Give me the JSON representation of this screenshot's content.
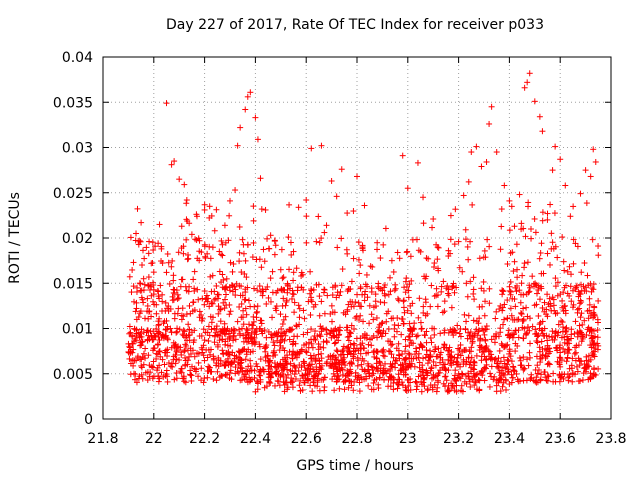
{
  "chart_data": {
    "type": "scatter",
    "title": "Day 227 of 2017, Rate Of TEC Index for receiver p033",
    "xlabel": "GPS time / hours",
    "ylabel": "ROTI / TECUs",
    "xlim": [
      21.8,
      23.8
    ],
    "ylim": [
      0,
      0.04
    ],
    "xticks": [
      "21.8",
      "22",
      "22.2",
      "22.4",
      "22.6",
      "22.8",
      "23",
      "23.2",
      "23.4",
      "23.6",
      "23.8"
    ],
    "yticks": [
      "0",
      "0.005",
      "0.01",
      "0.015",
      "0.02",
      "0.025",
      "0.03",
      "0.035",
      "0.04"
    ],
    "grid": true,
    "marker": "+",
    "marker_color": "#ff0000",
    "x_range_of_data": [
      21.9,
      23.75
    ],
    "series": [
      {
        "name": "ROTI",
        "points": [
          [
            21.92,
            0.0173
          ],
          [
            21.93,
            0.0205
          ],
          [
            21.95,
            0.0217
          ],
          [
            21.96,
            0.0155
          ],
          [
            21.98,
            0.0183
          ],
          [
            21.99,
            0.0172
          ],
          [
            22.0,
            0.0138
          ],
          [
            22.03,
            0.0188
          ],
          [
            22.05,
            0.0162
          ],
          [
            22.05,
            0.0349
          ],
          [
            22.07,
            0.0281
          ],
          [
            22.08,
            0.0285
          ],
          [
            22.1,
            0.0265
          ],
          [
            22.11,
            0.0213
          ],
          [
            22.12,
            0.0259
          ],
          [
            22.13,
            0.0242
          ],
          [
            22.15,
            0.0204
          ],
          [
            22.17,
            0.0224
          ],
          [
            22.18,
            0.0197
          ],
          [
            22.2,
            0.0231
          ],
          [
            22.22,
            0.0235
          ],
          [
            22.24,
            0.0208
          ],
          [
            22.26,
            0.0163
          ],
          [
            22.28,
            0.0214
          ],
          [
            22.3,
            0.0241
          ],
          [
            22.32,
            0.0253
          ],
          [
            22.33,
            0.0302
          ],
          [
            22.34,
            0.0322
          ],
          [
            22.36,
            0.0342
          ],
          [
            22.37,
            0.0356
          ],
          [
            22.38,
            0.0361
          ],
          [
            22.4,
            0.0333
          ],
          [
            22.41,
            0.0309
          ],
          [
            22.42,
            0.0266
          ],
          [
            22.44,
            0.0231
          ],
          [
            22.46,
            0.0203
          ],
          [
            22.48,
            0.0192
          ],
          [
            22.5,
            0.0165
          ],
          [
            22.53,
            0.0201
          ],
          [
            22.55,
            0.0185
          ],
          [
            22.58,
            0.0158
          ],
          [
            22.6,
            0.0242
          ],
          [
            22.62,
            0.0299
          ],
          [
            22.64,
            0.0196
          ],
          [
            22.66,
            0.0302
          ],
          [
            22.68,
            0.0214
          ],
          [
            22.7,
            0.0263
          ],
          [
            22.72,
            0.0246
          ],
          [
            22.74,
            0.0276
          ],
          [
            22.76,
            0.0187
          ],
          [
            22.78,
            0.0152
          ],
          [
            22.8,
            0.0268
          ],
          [
            22.83,
            0.0131
          ],
          [
            22.86,
            0.0168
          ],
          [
            22.9,
            0.0142
          ],
          [
            22.93,
            0.0156
          ],
          [
            22.96,
            0.0184
          ],
          [
            22.98,
            0.0291
          ],
          [
            23.0,
            0.0255
          ],
          [
            23.02,
            0.0198
          ],
          [
            23.04,
            0.0283
          ],
          [
            23.06,
            0.0245
          ],
          [
            23.08,
            0.0177
          ],
          [
            23.1,
            0.0221
          ],
          [
            23.12,
            0.0164
          ],
          [
            23.14,
            0.0152
          ],
          [
            23.16,
            0.0186
          ],
          [
            23.18,
            0.0147
          ],
          [
            23.2,
            0.0196
          ],
          [
            23.22,
            0.0247
          ],
          [
            23.24,
            0.0262
          ],
          [
            23.25,
            0.0295
          ],
          [
            23.27,
            0.0301
          ],
          [
            23.29,
            0.0279
          ],
          [
            23.31,
            0.0284
          ],
          [
            23.32,
            0.0326
          ],
          [
            23.33,
            0.0345
          ],
          [
            23.35,
            0.0295
          ],
          [
            23.37,
            0.0232
          ],
          [
            23.38,
            0.0258
          ],
          [
            23.4,
            0.0241
          ],
          [
            23.42,
            0.0213
          ],
          [
            23.44,
            0.0248
          ],
          [
            23.46,
            0.0366
          ],
          [
            23.47,
            0.0372
          ],
          [
            23.48,
            0.0382
          ],
          [
            23.5,
            0.0351
          ],
          [
            23.52,
            0.0334
          ],
          [
            23.53,
            0.0318
          ],
          [
            23.55,
            0.0227
          ],
          [
            23.57,
            0.0275
          ],
          [
            23.58,
            0.0301
          ],
          [
            23.6,
            0.0287
          ],
          [
            23.62,
            0.0258
          ],
          [
            23.64,
            0.0224
          ],
          [
            23.66,
            0.0194
          ],
          [
            23.68,
            0.0249
          ],
          [
            23.7,
            0.0275
          ],
          [
            23.72,
            0.0268
          ],
          [
            23.73,
            0.0298
          ],
          [
            23.74,
            0.0284
          ],
          [
            23.75,
            0.0181
          ]
        ]
      }
    ]
  }
}
